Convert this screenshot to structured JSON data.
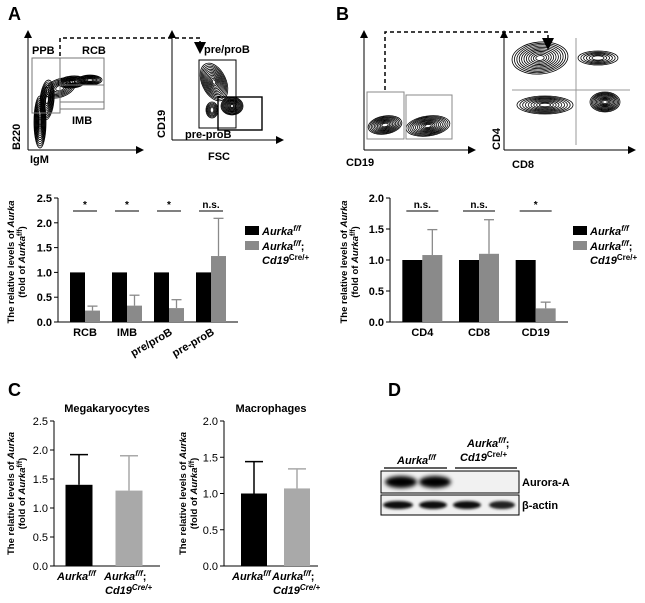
{
  "panels": {
    "a": "A",
    "b": "B",
    "c": "C",
    "d": "D"
  },
  "flow_a": {
    "gates": [
      "PPB",
      "RCB",
      "IMB"
    ],
    "left_xlabel": "IgM",
    "left_ylabel": "B220",
    "right_gates": [
      "pre/proB",
      "pre-proB"
    ],
    "right_xlabel": "FSC",
    "right_ylabel": "CD19"
  },
  "flow_b": {
    "left_xlabel": "CD19",
    "right_xlabel": "CD8",
    "right_ylabel": "CD4"
  },
  "legend": {
    "ctrl_name": "Aurka",
    "ctrl_sup": "f/f",
    "ko_name": "Aurka",
    "ko_sup": "f/f",
    "ko_semicolon": ";",
    "ko_line2": "Cd19",
    "ko_line2_sup": "Cre/+"
  },
  "colors": {
    "control": "#000000",
    "knockout_ab": "#8a8a8a",
    "knockout_c": "#a9a9a9"
  },
  "chart_data": [
    {
      "id": "a",
      "type": "bar",
      "categories": [
        "RCB",
        "IMB",
        "pre/proB",
        "pre-proB"
      ],
      "series": [
        {
          "name": "Aurka f/f",
          "values": [
            1.0,
            1.0,
            1.0,
            1.0
          ],
          "errors": [
            0,
            0,
            0,
            0
          ]
        },
        {
          "name": "Aurka f/f; Cd19 Cre/+",
          "values": [
            0.23,
            0.33,
            0.28,
            1.33
          ],
          "errors": [
            0.09,
            0.21,
            0.17,
            0.76
          ]
        }
      ],
      "significance": [
        "*",
        "*",
        "*",
        "n.s."
      ],
      "ylabel": "The relative levels of Aurka (fold of Aurka f/f)",
      "ylim": [
        0,
        2.5
      ],
      "yticks": [
        "0.0",
        "0.5",
        "1.0",
        "1.5",
        "2.0",
        "2.5"
      ]
    },
    {
      "id": "b",
      "type": "bar",
      "categories": [
        "CD4",
        "CD8",
        "CD19"
      ],
      "series": [
        {
          "name": "Aurka f/f",
          "values": [
            1.0,
            1.0,
            1.0
          ],
          "errors": [
            0,
            0,
            0
          ]
        },
        {
          "name": "Aurka f/f; Cd19 Cre/+",
          "values": [
            1.08,
            1.1,
            0.22
          ],
          "errors": [
            0.41,
            0.55,
            0.1
          ]
        }
      ],
      "significance": [
        "n.s.",
        "n.s.",
        "*"
      ],
      "ylabel": "The relative levels of Aurka (fold of Aurka f/f)",
      "ylim": [
        0,
        2.0
      ],
      "yticks": [
        "0.0",
        "0.5",
        "1.0",
        "1.5",
        "2.0"
      ]
    },
    {
      "id": "c1",
      "type": "bar",
      "title": "Megakaryocytes",
      "categories": [
        "Aurka f/f",
        "Aurka f/f; Cd19 Cre/+"
      ],
      "values": [
        1.4,
        1.3
      ],
      "errors": [
        0.52,
        0.6
      ],
      "ylabel": "The relative levels of Aurka (fold of Aurka f/f)",
      "ylim": [
        0,
        2.5
      ],
      "yticks": [
        "0.0",
        "0.5",
        "1.0",
        "1.5",
        "2.0",
        "2.5"
      ]
    },
    {
      "id": "c2",
      "type": "bar",
      "title": "Macrophages",
      "categories": [
        "Aurka f/f",
        "Aurka f/f; Cd19 Cre/+"
      ],
      "values": [
        1.0,
        1.07
      ],
      "errors": [
        0.44,
        0.27
      ],
      "ylabel": "The relative levels of Aurka (fold of Aurka f/f)",
      "ylim": [
        0,
        2.0
      ],
      "yticks": [
        "0.0",
        "0.5",
        "1.0",
        "1.5",
        "2.0"
      ]
    }
  ],
  "western": {
    "lane_group1": "Aurka",
    "lane_group1_sup": "f/f",
    "lane_group2_line1": "Aurka",
    "lane_group2_line1_sup": "f/f",
    "lane_group2_semicolon": ";",
    "lane_group2_line2": "Cd19",
    "lane_group2_line2_sup": "Cre/+",
    "band1": "Aurora-A",
    "band2": "β-actin"
  }
}
